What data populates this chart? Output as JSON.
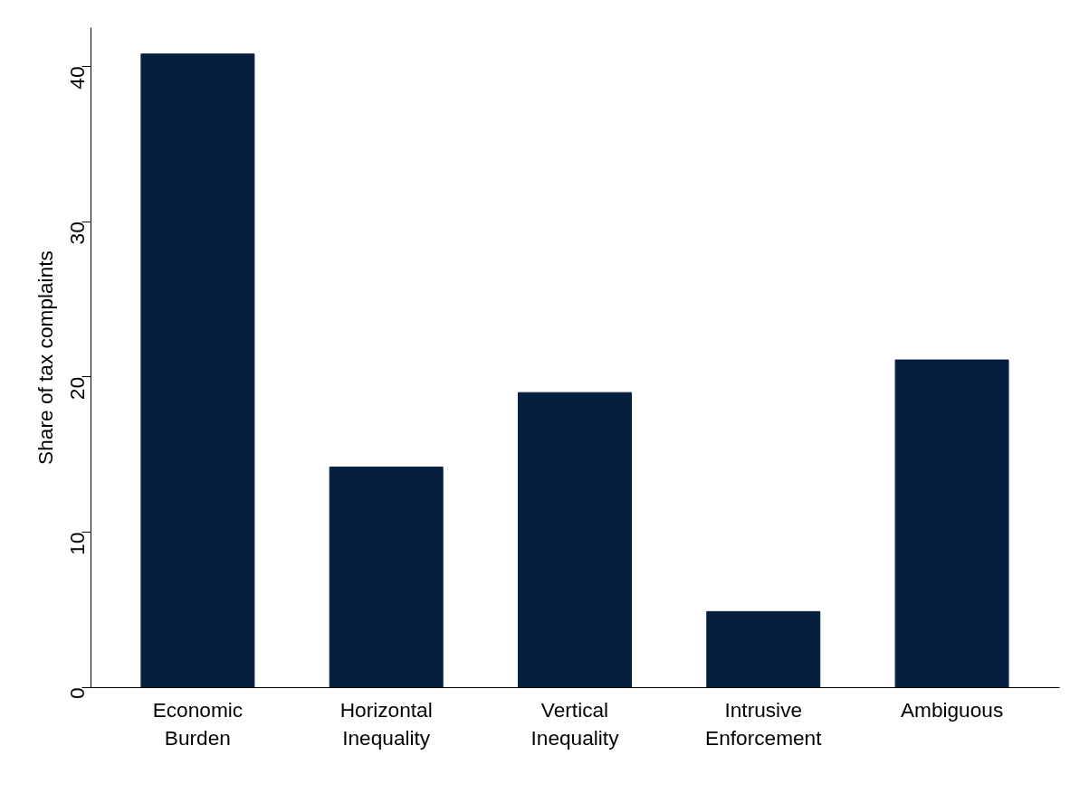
{
  "chart_data": {
    "type": "bar",
    "ylabel": "Share of tax complaints",
    "categories": [
      "Economic\nBurden",
      "Horizontal\nInequality",
      "Vertical\nInequality",
      "Intrusive\nEnforcement",
      "Ambiguous"
    ],
    "values": [
      40.8,
      14.2,
      19.0,
      4.9,
      21.1
    ],
    "color": "#061f40",
    "ylim": [
      0,
      42.5
    ],
    "yticks": [
      0,
      10,
      20,
      30,
      40
    ],
    "grid": false
  }
}
